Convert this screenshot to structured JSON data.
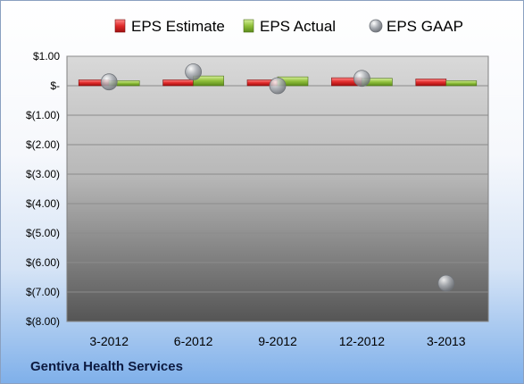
{
  "footer": {
    "company": "Gentiva Health Services"
  },
  "colors": {
    "estimate": "#e02a2a",
    "actual": "#8fbf3a",
    "gaap": "#a9adb3",
    "plot_top": "#d9d9d9",
    "plot_bottom": "#555555"
  },
  "legend": [
    {
      "label": "EPS Estimate",
      "icon": "red-bar-icon"
    },
    {
      "label": "EPS Actual",
      "icon": "green-bar-icon"
    },
    {
      "label": "EPS GAAP",
      "icon": "gray-bubble-icon"
    }
  ],
  "chart_data": {
    "type": "bar",
    "categories": [
      "3-2012",
      "6-2012",
      "9-2012",
      "12-2012",
      "3-2013"
    ],
    "series": [
      {
        "name": "EPS Estimate",
        "kind": "bar",
        "values": [
          0.2,
          0.2,
          0.2,
          0.27,
          0.23
        ]
      },
      {
        "name": "EPS Actual",
        "kind": "bar",
        "values": [
          0.17,
          0.33,
          0.3,
          0.25,
          0.17
        ]
      },
      {
        "name": "EPS GAAP",
        "kind": "bubble",
        "values": [
          0.13,
          0.47,
          0.0,
          0.25,
          -6.7
        ]
      }
    ],
    "ylim": [
      -8,
      1
    ],
    "yticks": [
      1,
      0,
      -1,
      -2,
      -3,
      -4,
      -5,
      -6,
      -7,
      -8
    ],
    "ytick_labels": [
      "$1.00",
      "$-",
      "$(1.00)",
      "$(2.00)",
      "$(3.00)",
      "$(4.00)",
      "$(5.00)",
      "$(6.00)",
      "$(7.00)",
      "$(8.00)"
    ],
    "legend_position": "top",
    "grid": true
  }
}
